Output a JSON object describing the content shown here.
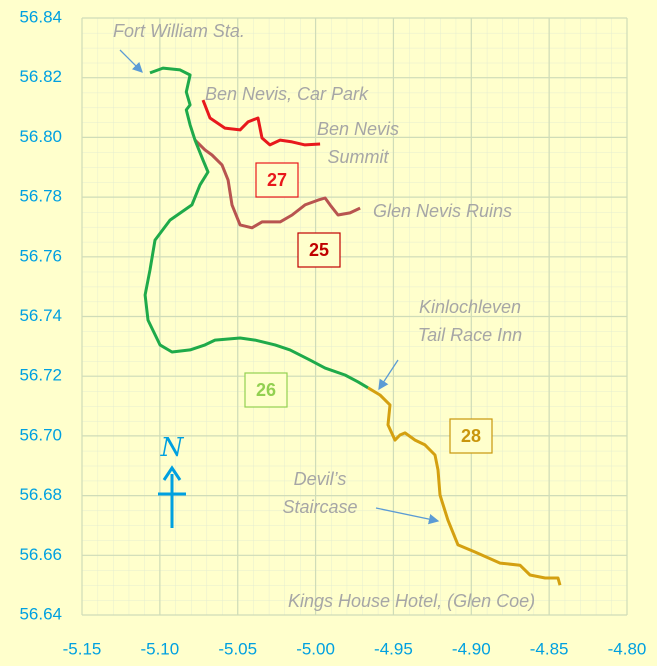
{
  "chart_data": {
    "type": "line",
    "north_label": "N",
    "annotations": [
      [
        "Fort William Sta."
      ],
      [
        "Ben Nevis, Car Park"
      ],
      [
        "Ben Nevis",
        "Summit"
      ],
      [
        "Glen Nevis Ruins"
      ],
      [
        "Kinlochleven",
        "Tail Race Inn"
      ],
      [
        "Devil’s",
        "Staircase"
      ],
      [
        "Kings House Hotel, (Glen Coe)"
      ]
    ],
    "xlim": [
      -5.15,
      -4.8
    ],
    "xticks": [
      -5.15,
      {
        "value": -5.1,
        "label": "-5.10"
      },
      -5.05,
      {
        "value": -5.0,
        "label": "-5.00"
      },
      -4.95,
      {
        "value": -4.9,
        "label": "-4.90"
      },
      -4.85,
      {
        "value": -4.8,
        "label": "-4.80"
      }
    ],
    "ylim": [
      56.64,
      56.84
    ],
    "yticks": [
      56.64,
      56.66,
      56.68,
      {
        "value": 56.7,
        "label": "56.70"
      },
      56.72,
      56.74,
      56.76,
      56.78,
      {
        "value": 56.8,
        "label": "56.80"
      },
      56.82,
      56.84
    ],
    "grid": true,
    "series": [
      {
        "name": "25",
        "color": "#b85450",
        "label_color": "#c00000",
        "x": [
          -5.0774,
          -5.071,
          -5.0665,
          -5.0601,
          -5.0562,
          -5.0537,
          -5.0485,
          -5.0408,
          -5.0344,
          -5.0228,
          -5.0151,
          -5.0068,
          -4.9984,
          -4.9939,
          -4.9907,
          -4.9856,
          -4.9779,
          -4.9714
        ],
        "values": [
          56.7991,
          56.7958,
          56.7941,
          56.7908,
          56.7857,
          56.7774,
          56.7707,
          56.7697,
          56.7717,
          56.7717,
          56.774,
          56.7774,
          56.779,
          56.7797,
          56.7774,
          56.774,
          56.7747,
          56.7763
        ]
      },
      {
        "name": "26",
        "color": "#1faa4a",
        "label_color": "#92d050",
        "x": [
          -5.1063,
          -5.098,
          -5.087,
          -5.0806,
          -5.083,
          -5.0806,
          -5.083,
          -5.0806,
          -5.0774,
          -5.0723,
          -5.0691,
          -5.0742,
          -5.0794,
          -5.0935,
          -5.1031,
          -5.1063,
          -5.1095,
          -5.1076,
          -5.0999,
          -5.0922,
          -5.0806,
          -5.071,
          -5.0646,
          -5.0485,
          -5.0389,
          -5.026,
          -5.0164,
          -5.0036,
          -4.9939,
          -4.9811,
          -4.9727,
          -4.9663
        ],
        "values": [
          56.8216,
          56.8232,
          56.8226,
          56.8209,
          56.8152,
          56.8109,
          56.8092,
          56.8042,
          56.7991,
          56.7924,
          56.7884,
          56.7841,
          56.7774,
          56.7723,
          56.7656,
          56.7556,
          56.7472,
          56.7388,
          56.7305,
          56.7281,
          56.7288,
          56.7305,
          56.7321,
          56.7328,
          56.7321,
          56.7305,
          56.7288,
          56.7254,
          56.7227,
          56.7204,
          56.7181,
          56.7161
        ]
      },
      {
        "name": "27",
        "color": "#e8181c",
        "label_color": "#e8181c",
        "x": [
          -5.0723,
          -5.0678,
          -5.0582,
          -5.0485,
          -5.0434,
          -5.037,
          -5.0344,
          -5.0293,
          -5.0228,
          -5.0151,
          -5.0068,
          -4.9971
        ],
        "values": [
          56.8125,
          56.8065,
          56.8031,
          56.8025,
          56.8052,
          56.8065,
          56.7998,
          56.7975,
          56.7991,
          56.7985,
          56.7975,
          56.7978
        ]
      },
      {
        "name": "28",
        "color": "#d4a010",
        "label_color": "#c9960c",
        "x": [
          -4.9663,
          -4.9586,
          -4.9522,
          -4.9535,
          -4.949,
          -4.9458,
          -4.9426,
          -4.9361,
          -4.9297,
          -4.9233,
          -4.9214,
          -4.9201,
          -4.915,
          -4.9085,
          -4.8976,
          -4.8815,
          -4.8687,
          -4.8623,
          -4.8526,
          -4.8443,
          -4.843
        ],
        "values": [
          56.7161,
          56.7137,
          56.7104,
          56.7037,
          56.6986,
          56.7003,
          56.701,
          56.6986,
          56.697,
          56.6936,
          56.6886,
          56.6802,
          56.6718,
          56.6635,
          56.6611,
          56.6574,
          56.6567,
          56.6534,
          56.6524,
          56.6524,
          56.65
        ]
      }
    ]
  }
}
